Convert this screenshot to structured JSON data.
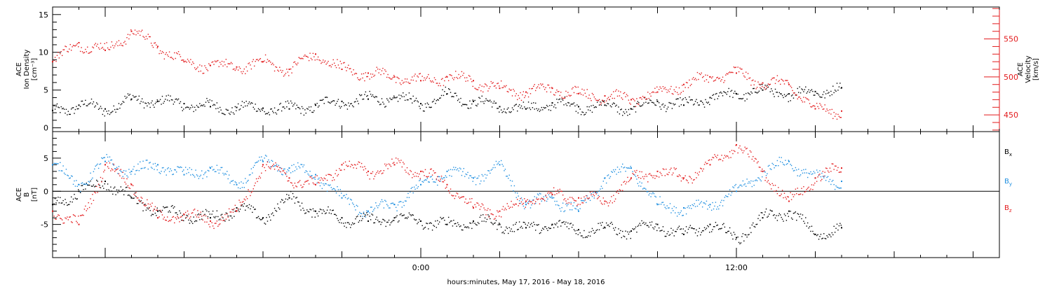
{
  "figure": {
    "xlabel": "hours:minutes, May 17, 2016 - May 18, 2016",
    "x_start": "2016-05-17 10:00",
    "x_end": "2016-05-18 22:00",
    "x_ticks": [
      {
        "t": "2016-05-18 00:00",
        "label": "0:00"
      },
      {
        "t": "2016-05-18 12:00",
        "label": "12:00"
      }
    ]
  },
  "colors": {
    "black": "#000000",
    "blue": "#1f8fe0",
    "red": "#e31a1c"
  },
  "chart_data": [
    {
      "type": "scatter",
      "title": "",
      "ylabel": "ACE\nIon Density\n[cm⁻³]",
      "ylabel_lines": [
        "ACE",
        "Ion Density",
        "[cm⁻³]"
      ],
      "ylim": [
        -0.5,
        16
      ],
      "y_ticks": [
        "0",
        "5",
        "10",
        "15"
      ],
      "y2label_lines": [
        "ACE",
        "Velocity",
        "[km/s]"
      ],
      "y2lim": [
        428,
        592
      ],
      "y2_ticks": [
        "450",
        "500",
        "550"
      ],
      "series": [
        {
          "name": "",
          "color_key": "black",
          "axis": "left",
          "points": [
            [
              "2016-05-17 10:00",
              2.3
            ],
            [
              "2016-05-17 11:00",
              3.0
            ],
            [
              "2016-05-17 12:00",
              2.5
            ],
            [
              "2016-05-17 13:00",
              3.8
            ],
            [
              "2016-05-17 14:00",
              3.5
            ],
            [
              "2016-05-17 15:00",
              3.2
            ],
            [
              "2016-05-17 16:00",
              2.8
            ],
            [
              "2016-05-17 17:00",
              2.7
            ],
            [
              "2016-05-17 18:00",
              2.6
            ],
            [
              "2016-05-17 19:00",
              2.5
            ],
            [
              "2016-05-17 20:00",
              3.0
            ],
            [
              "2016-05-17 21:00",
              3.5
            ],
            [
              "2016-05-17 22:00",
              3.8
            ],
            [
              "2016-05-17 23:00",
              4.0
            ],
            [
              "2016-05-18 00:00",
              3.2
            ],
            [
              "2016-05-18 01:00",
              4.5
            ],
            [
              "2016-05-18 02:00",
              3.5
            ],
            [
              "2016-05-18 03:00",
              2.8
            ],
            [
              "2016-05-18 04:00",
              2.5
            ],
            [
              "2016-05-18 05:00",
              3.3
            ],
            [
              "2016-05-18 06:00",
              2.8
            ],
            [
              "2016-05-18 07:00",
              3.0
            ],
            [
              "2016-05-18 08:00",
              2.5
            ],
            [
              "2016-05-18 09:00",
              3.5
            ],
            [
              "2016-05-18 10:00",
              3.0
            ],
            [
              "2016-05-18 11:00",
              4.0
            ],
            [
              "2016-05-18 12:00",
              4.5
            ],
            [
              "2016-05-18 13:00",
              5.0
            ],
            [
              "2016-05-18 14:00",
              4.5
            ],
            [
              "2016-05-18 15:00",
              4.8
            ],
            [
              "2016-05-18 16:00",
              5.3
            ]
          ]
        },
        {
          "name": "",
          "color_key": "red",
          "axis": "right",
          "points": [
            [
              "2016-05-17 10:00",
              520
            ],
            [
              "2016-05-17 11:00",
              545
            ],
            [
              "2016-05-17 12:00",
              535
            ],
            [
              "2016-05-17 13:00",
              560
            ],
            [
              "2016-05-17 14:00",
              540
            ],
            [
              "2016-05-17 15:00",
              520
            ],
            [
              "2016-05-17 16:00",
              515
            ],
            [
              "2016-05-17 17:00",
              513
            ],
            [
              "2016-05-17 18:00",
              520
            ],
            [
              "2016-05-17 19:00",
              510
            ],
            [
              "2016-05-17 20:00",
              530
            ],
            [
              "2016-05-17 21:00",
              510
            ],
            [
              "2016-05-17 22:00",
              505
            ],
            [
              "2016-05-17 23:00",
              500
            ],
            [
              "2016-05-18 00:00",
              495
            ],
            [
              "2016-05-18 01:00",
              500
            ],
            [
              "2016-05-18 02:00",
              495
            ],
            [
              "2016-05-18 03:00",
              485
            ],
            [
              "2016-05-18 04:00",
              480
            ],
            [
              "2016-05-18 05:00",
              485
            ],
            [
              "2016-05-18 06:00",
              478
            ],
            [
              "2016-05-18 07:00",
              475
            ],
            [
              "2016-05-18 08:00",
              470
            ],
            [
              "2016-05-18 09:00",
              480
            ],
            [
              "2016-05-18 10:00",
              490
            ],
            [
              "2016-05-18 11:00",
              500
            ],
            [
              "2016-05-18 12:00",
              505
            ],
            [
              "2016-05-18 13:00",
              492
            ],
            [
              "2016-05-18 14:00",
              490
            ],
            [
              "2016-05-18 15:00",
              458
            ],
            [
              "2016-05-18 16:00",
              455
            ]
          ]
        }
      ]
    },
    {
      "type": "scatter",
      "title": "",
      "ylabel_lines": [
        "ACE",
        "B",
        "[nT]"
      ],
      "ylim": [
        -10,
        9
      ],
      "y_ticks": [
        "-5",
        "0",
        "5"
      ],
      "zero_line": true,
      "series": [
        {
          "name": "Bx",
          "legend": {
            "main": "B",
            "sub": "x"
          },
          "color_key": "black",
          "points": [
            [
              "2016-05-17 10:00",
              -2.0
            ],
            [
              "2016-05-17 11:00",
              0.0
            ],
            [
              "2016-05-17 12:00",
              1.5
            ],
            [
              "2016-05-17 13:00",
              -1.0
            ],
            [
              "2016-05-17 14:00",
              -3.0
            ],
            [
              "2016-05-17 15:00",
              -3.5
            ],
            [
              "2016-05-17 16:00",
              -4.0
            ],
            [
              "2016-05-17 17:00",
              -2.5
            ],
            [
              "2016-05-17 18:00",
              -4.0
            ],
            [
              "2016-05-17 19:00",
              -1.0
            ],
            [
              "2016-05-17 20:00",
              -3.0
            ],
            [
              "2016-05-17 21:00",
              -4.0
            ],
            [
              "2016-05-17 22:00",
              -4.5
            ],
            [
              "2016-05-17 23:00",
              -4.0
            ],
            [
              "2016-05-18 00:00",
              -4.5
            ],
            [
              "2016-05-18 01:00",
              -5.0
            ],
            [
              "2016-05-18 02:00",
              -4.5
            ],
            [
              "2016-05-18 03:00",
              -5.0
            ],
            [
              "2016-05-18 04:00",
              -5.5
            ],
            [
              "2016-05-18 05:00",
              -5.0
            ],
            [
              "2016-05-18 06:00",
              -5.8
            ],
            [
              "2016-05-18 07:00",
              -5.5
            ],
            [
              "2016-05-18 08:00",
              -6.0
            ],
            [
              "2016-05-18 09:00",
              -5.0
            ],
            [
              "2016-05-18 10:00",
              -6.5
            ],
            [
              "2016-05-18 11:00",
              -5.0
            ],
            [
              "2016-05-18 12:00",
              -7.0
            ],
            [
              "2016-05-18 13:00",
              -4.0
            ],
            [
              "2016-05-18 14:00",
              -3.0
            ],
            [
              "2016-05-18 15:00",
              -6.5
            ],
            [
              "2016-05-18 16:00",
              -5.5
            ]
          ]
        },
        {
          "name": "By",
          "legend": {
            "main": "B",
            "sub": "y"
          },
          "color_key": "blue",
          "points": [
            [
              "2016-05-17 10:00",
              4.0
            ],
            [
              "2016-05-17 11:00",
              1.0
            ],
            [
              "2016-05-17 12:00",
              4.5
            ],
            [
              "2016-05-17 13:00",
              3.0
            ],
            [
              "2016-05-17 14:00",
              4.0
            ],
            [
              "2016-05-17 15:00",
              2.5
            ],
            [
              "2016-05-17 16:00",
              3.5
            ],
            [
              "2016-05-17 17:00",
              1.0
            ],
            [
              "2016-05-17 18:00",
              4.5
            ],
            [
              "2016-05-17 19:00",
              3.5
            ],
            [
              "2016-05-17 20:00",
              2.5
            ],
            [
              "2016-05-17 21:00",
              -1.0
            ],
            [
              "2016-05-17 22:00",
              -3.0
            ],
            [
              "2016-05-17 23:00",
              -2.0
            ],
            [
              "2016-05-18 00:00",
              1.0
            ],
            [
              "2016-05-18 01:00",
              3.0
            ],
            [
              "2016-05-18 02:00",
              2.0
            ],
            [
              "2016-05-18 03:00",
              4.0
            ],
            [
              "2016-05-18 04:00",
              -2.0
            ],
            [
              "2016-05-18 05:00",
              -1.0
            ],
            [
              "2016-05-18 06:00",
              -3.0
            ],
            [
              "2016-05-18 07:00",
              2.0
            ],
            [
              "2016-05-18 08:00",
              3.5
            ],
            [
              "2016-05-18 09:00",
              -2.0
            ],
            [
              "2016-05-18 10:00",
              -2.5
            ],
            [
              "2016-05-18 11:00",
              -2.0
            ],
            [
              "2016-05-18 12:00",
              0.0
            ],
            [
              "2016-05-18 13:00",
              3.0
            ],
            [
              "2016-05-18 14:00",
              4.5
            ],
            [
              "2016-05-18 15:00",
              2.0
            ],
            [
              "2016-05-18 16:00",
              1.5
            ]
          ]
        },
        {
          "name": "Bz",
          "legend": {
            "main": "B",
            "sub": "z"
          },
          "color_key": "red",
          "points": [
            [
              "2016-05-17 10:00",
              -3.0
            ],
            [
              "2016-05-17 11:00",
              -5.0
            ],
            [
              "2016-05-17 12:00",
              4.0
            ],
            [
              "2016-05-17 13:00",
              1.0
            ],
            [
              "2016-05-17 14:00",
              -4.0
            ],
            [
              "2016-05-17 15:00",
              -3.5
            ],
            [
              "2016-05-17 16:00",
              -4.5
            ],
            [
              "2016-05-17 17:00",
              -3.0
            ],
            [
              "2016-05-17 18:00",
              4.0
            ],
            [
              "2016-05-17 19:00",
              2.0
            ],
            [
              "2016-05-17 20:00",
              1.0
            ],
            [
              "2016-05-17 21:00",
              4.0
            ],
            [
              "2016-05-17 22:00",
              3.0
            ],
            [
              "2016-05-17 23:00",
              4.0
            ],
            [
              "2016-05-18 00:00",
              3.0
            ],
            [
              "2016-05-18 01:00",
              1.0
            ],
            [
              "2016-05-18 02:00",
              -2.5
            ],
            [
              "2016-05-18 03:00",
              -3.0
            ],
            [
              "2016-05-18 04:00",
              -1.5
            ],
            [
              "2016-05-18 05:00",
              -0.5
            ],
            [
              "2016-05-18 06:00",
              -1.0
            ],
            [
              "2016-05-18 07:00",
              -1.5
            ],
            [
              "2016-05-18 08:00",
              2.0
            ],
            [
              "2016-05-18 09:00",
              3.0
            ],
            [
              "2016-05-18 10:00",
              2.0
            ],
            [
              "2016-05-18 11:00",
              4.0
            ],
            [
              "2016-05-18 12:00",
              7.0
            ],
            [
              "2016-05-18 13:00",
              3.0
            ],
            [
              "2016-05-18 14:00",
              -1.5
            ],
            [
              "2016-05-18 15:00",
              2.0
            ],
            [
              "2016-05-18 16:00",
              3.5
            ]
          ]
        }
      ]
    }
  ]
}
